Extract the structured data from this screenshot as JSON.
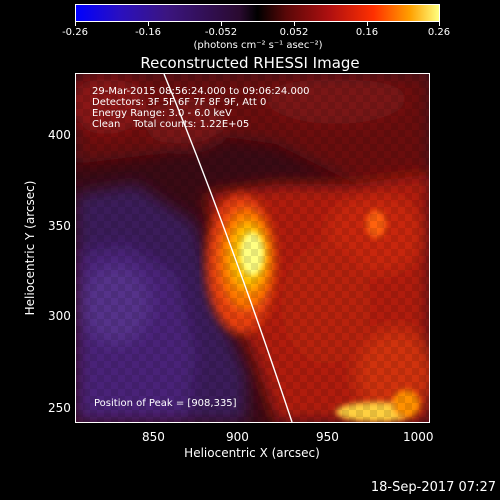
{
  "colorbar": {
    "ticks": [
      "-0.26",
      "-0.16",
      "-0.052",
      "0.052",
      "0.16",
      "0.26"
    ],
    "unit": "(photons cm⁻² s⁻¹ asec⁻²)"
  },
  "title": "Reconstructed RHESSI Image",
  "info": {
    "time_range": "29-Mar-2015 08:56:24.000 to 09:06:24.000",
    "detectors": "Detectors: 3F 5F 6F 7F 8F 9F, Att 0",
    "energy": "Energy Range: 3.0 - 6.0 keV",
    "clean": "Clean    Total counts: 1.22E+05",
    "peak": "Position of Peak = [908,335]"
  },
  "axes": {
    "xlabel": "Heliocentric X (arcsec)",
    "ylabel": "Heliocentric Y (arcsec)",
    "xticks": [
      "850",
      "900",
      "950",
      "1000"
    ],
    "yticks": [
      "400",
      "350",
      "300",
      "250"
    ]
  },
  "timestamp": "18-Sep-2017 07:27",
  "colors": {
    "background": "#000000",
    "peak": "#ffff80",
    "limb_line": "#ffffff"
  }
}
